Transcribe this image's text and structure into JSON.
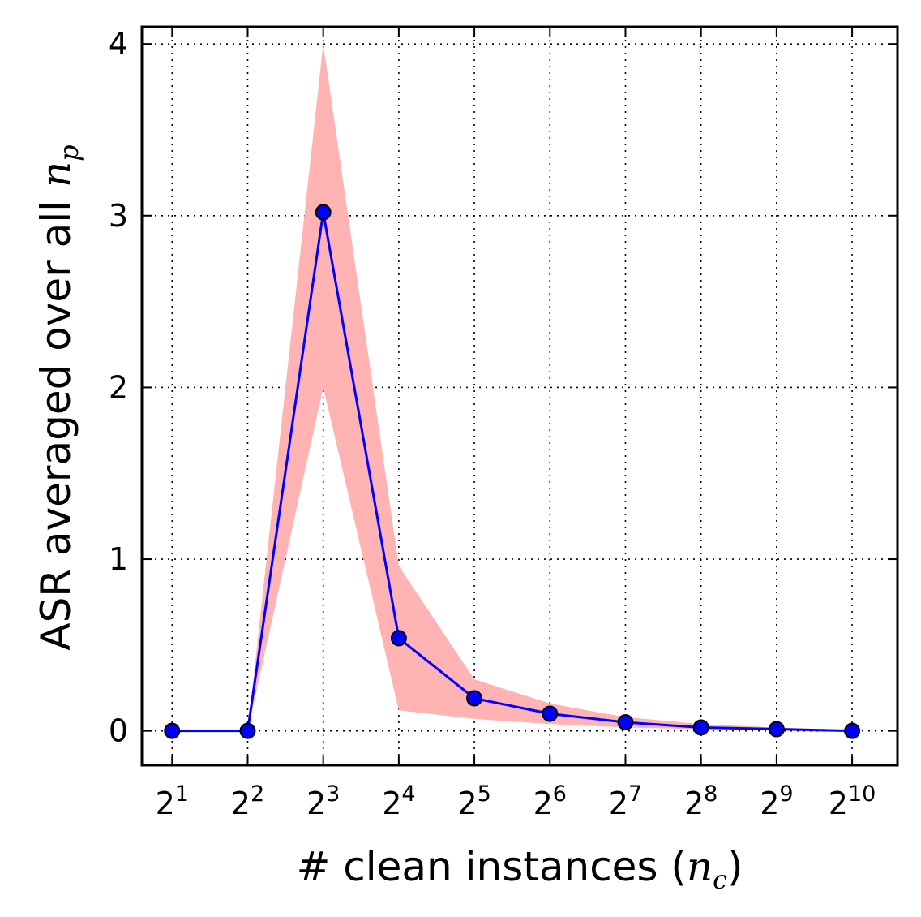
{
  "chart_data": {
    "type": "line",
    "xlabel": "# clean instances (n_c)",
    "xlabel_text": "# clean instances (",
    "xlabel_math": "n",
    "xlabel_math_sub": "c",
    "xlabel_close": ")",
    "ylabel_text": "ASR averaged over all ",
    "ylabel_math": "n",
    "ylabel_math_sub": "p",
    "x": [
      1,
      2,
      3,
      4,
      5,
      6,
      7,
      8,
      9,
      10
    ],
    "x_tick_labels": [
      {
        "base": "2",
        "exp": "1"
      },
      {
        "base": "2",
        "exp": "2"
      },
      {
        "base": "2",
        "exp": "3"
      },
      {
        "base": "2",
        "exp": "4"
      },
      {
        "base": "2",
        "exp": "5"
      },
      {
        "base": "2",
        "exp": "6"
      },
      {
        "base": "2",
        "exp": "7"
      },
      {
        "base": "2",
        "exp": "8"
      },
      {
        "base": "2",
        "exp": "9"
      },
      {
        "base": "2",
        "exp": "10"
      }
    ],
    "y_ticks": [
      0,
      1,
      2,
      3,
      4
    ],
    "y_tick_labels": [
      "0",
      "1",
      "2",
      "3",
      "4"
    ],
    "xlim": [
      0.6,
      10.6
    ],
    "ylim": [
      -0.2,
      4.1
    ],
    "grid": true,
    "series": [
      {
        "values": [
          0.0,
          0.0,
          3.02,
          0.54,
          0.19,
          0.1,
          0.05,
          0.02,
          0.01,
          0.0
        ],
        "band_lower": [
          0.0,
          0.0,
          2.0,
          0.12,
          0.07,
          0.04,
          0.02,
          0.01,
          0.005,
          0.0
        ],
        "band_upper": [
          0.0,
          0.0,
          4.0,
          0.96,
          0.3,
          0.16,
          0.08,
          0.04,
          0.02,
          0.005
        ],
        "line_color": "#0000ff",
        "marker_color": "#0000ff",
        "band_color": "#ffb3b3"
      }
    ]
  }
}
